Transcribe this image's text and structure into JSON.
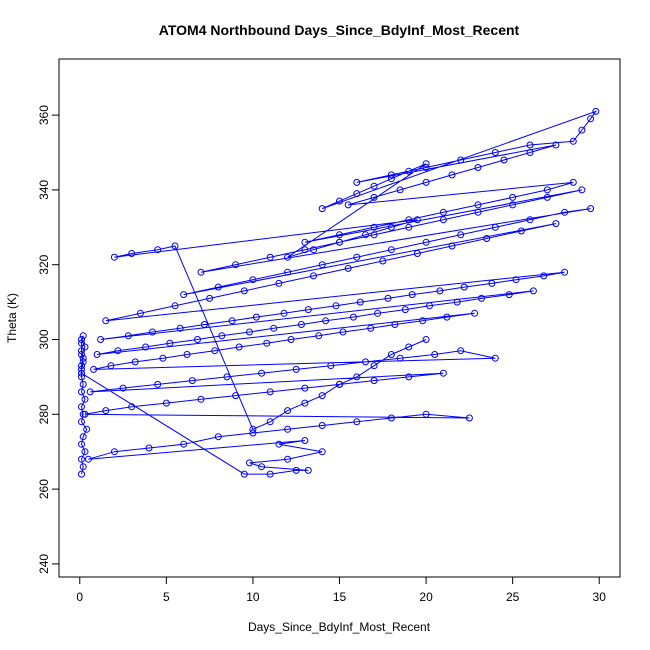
{
  "chart_data": {
    "type": "scatter",
    "title": "ATOM4 Northbound Days_Since_BdyInf_Most_Recent",
    "xlabel": "Days_Since_BdyInf_Most_Recent",
    "ylabel": "Theta (K)",
    "xlim": [
      -1.2,
      31.2
    ],
    "ylim": [
      236.5,
      375
    ],
    "xticks": [
      "0",
      "5",
      "10",
      "15",
      "20",
      "25",
      "30"
    ],
    "yticks": [
      "240",
      "260",
      "280",
      "300",
      "320",
      "340",
      "360"
    ],
    "series_color": "#0000ff",
    "markers": "open-circle",
    "connected": true,
    "note_on_points": "points are sampled estimates of the depicted cloud; series drawn as line-connected open circles",
    "series": [
      {
        "x": [
          0.1,
          0.2,
          0.1,
          0.3,
          0.1,
          0.2,
          0.4,
          0.1,
          0.2,
          0.1,
          0.3,
          0.1,
          0.2,
          0.1,
          0.1,
          0.2,
          0.1,
          0.3,
          0.1,
          0.2,
          0.1,
          0.1,
          0.2,
          0.1,
          0.1,
          9.5,
          11.0,
          12.5,
          13.2,
          10.5,
          9.8,
          12.0,
          14.0,
          11.5,
          13.0,
          0.5,
          2.0,
          4.0,
          6.0,
          8.0,
          10.0,
          12.0,
          14.0,
          16.0,
          18.0,
          20.0,
          22.5,
          0.3,
          1.5,
          3.0,
          5.0,
          7.0,
          9.0,
          11.0,
          13.0,
          15.0,
          17.0,
          19.0,
          21.0,
          0.6,
          2.5,
          4.5,
          6.5,
          8.5,
          10.5,
          12.5,
          14.5,
          16.5,
          18.5,
          20.5,
          22.0,
          24.0,
          0.8,
          1.8,
          3.2,
          4.8,
          6.2,
          7.8,
          9.2,
          10.8,
          12.2,
          13.8,
          15.2,
          16.8,
          18.2,
          19.8,
          21.2,
          22.8,
          1.0,
          2.2,
          3.8,
          5.2,
          6.8,
          8.2,
          9.8,
          11.2,
          12.8,
          14.2,
          15.8,
          17.2,
          18.8,
          20.2,
          21.8,
          23.2,
          24.8,
          26.2,
          1.2,
          2.8,
          4.2,
          5.8,
          7.2,
          8.8,
          10.2,
          11.8,
          13.2,
          14.8,
          16.2,
          17.8,
          19.2,
          20.8,
          22.2,
          23.8,
          25.2,
          26.8,
          28.0,
          1.5,
          3.5,
          5.5,
          7.5,
          9.5,
          11.5,
          13.5,
          15.5,
          17.5,
          19.5,
          21.5,
          23.5,
          25.5,
          27.5,
          6.0,
          8.0,
          10.0,
          12.0,
          14.0,
          16.0,
          18.0,
          20.0,
          22.0,
          24.0,
          26.0,
          28.0,
          29.5,
          7.0,
          9.0,
          11.0,
          13.0,
          15.0,
          17.0,
          19.0,
          21.0,
          23.0,
          25.0,
          27.0,
          29.0,
          13.0,
          15.0,
          17.0,
          19.0,
          21.0,
          23.0,
          25.0,
          27.0,
          28.5,
          15.5,
          17.0,
          18.5,
          20.0,
          21.5,
          23.0,
          24.5,
          26.0,
          27.5,
          16.0,
          18.0,
          20.0,
          22.0,
          24.0,
          26.0,
          28.5,
          29.0,
          29.5,
          29.8,
          14.0,
          15.0,
          16.0,
          17.0,
          18.0,
          19.0,
          20.0,
          12.0,
          13.5,
          15.0,
          16.5,
          18.0,
          19.5,
          2.0,
          3.0,
          4.5,
          5.5,
          10.0,
          11.0,
          12.0,
          13.0,
          14.0,
          15.0,
          16.0,
          17.0,
          18.0,
          19.0,
          20.0
        ],
        "y": [
          264,
          266,
          268,
          270,
          272,
          274,
          276,
          278,
          280,
          282,
          284,
          286,
          288,
          290,
          292,
          294,
          296,
          298,
          300,
          301,
          299,
          297,
          295,
          293,
          291,
          264,
          264,
          265,
          265,
          266,
          267,
          268,
          270,
          272,
          273,
          268,
          270,
          271,
          272,
          274,
          275,
          276,
          277,
          278,
          279,
          280,
          279,
          280,
          281,
          282,
          283,
          284,
          285,
          286,
          287,
          288,
          289,
          290,
          291,
          286,
          287,
          288,
          289,
          290,
          291,
          292,
          293,
          294,
          295,
          296,
          297,
          295,
          292,
          293,
          294,
          295,
          296,
          297,
          298,
          299,
          300,
          301,
          302,
          303,
          304,
          305,
          306,
          307,
          296,
          297,
          298,
          299,
          300,
          301,
          302,
          303,
          304,
          305,
          306,
          307,
          308,
          309,
          310,
          311,
          312,
          313,
          300,
          301,
          302,
          303,
          304,
          305,
          306,
          307,
          308,
          309,
          310,
          311,
          312,
          313,
          314,
          315,
          316,
          317,
          318,
          305,
          307,
          309,
          311,
          313,
          315,
          317,
          319,
          321,
          323,
          325,
          327,
          329,
          331,
          312,
          314,
          316,
          318,
          320,
          322,
          324,
          326,
          328,
          330,
          332,
          334,
          335,
          318,
          320,
          322,
          324,
          326,
          328,
          330,
          332,
          334,
          336,
          338,
          340,
          326,
          328,
          330,
          332,
          334,
          336,
          338,
          340,
          342,
          336,
          338,
          340,
          342,
          344,
          346,
          348,
          350,
          352,
          342,
          344,
          346,
          348,
          350,
          352,
          353,
          356,
          359,
          361,
          335,
          337,
          339,
          341,
          343,
          345,
          347,
          322,
          324,
          326,
          328,
          330,
          332,
          322,
          323,
          324,
          325,
          276,
          278,
          281,
          283,
          285,
          288,
          290,
          293,
          296,
          298,
          300
        ]
      }
    ]
  }
}
